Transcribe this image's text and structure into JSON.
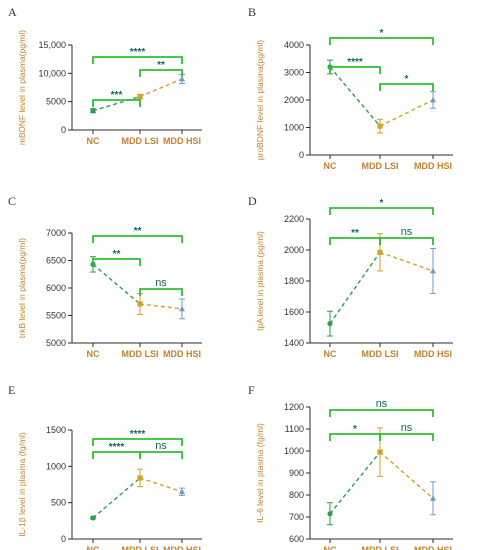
{
  "colors": {
    "nc": "#2e9e4a",
    "lsi": "#d4a12a",
    "hsi": "#6e9ec8",
    "bracket": "#2ec12e",
    "axis": "#2b2b2b",
    "label": "#c8812f",
    "sig_text": "#0f6b5b"
  },
  "chart_data": [
    {
      "panel_label": "A",
      "type": "line",
      "ylabel": "mBDNF level in plasma(pg/ml)",
      "categories": [
        "NC",
        "MDD LSI",
        "MDD HSI"
      ],
      "values": [
        3400,
        5900,
        9000
      ],
      "errors": [
        350,
        400,
        800
      ],
      "ylim": [
        0,
        15000
      ],
      "yticks": [
        0,
        5000,
        10000,
        15000
      ],
      "ytick_labels": [
        "0",
        "5000",
        "10,000",
        "15,000"
      ],
      "brackets": [
        {
          "from": 0,
          "to": 1,
          "text": "***"
        },
        {
          "from": 1,
          "to": 2,
          "text": "**"
        },
        {
          "from": 0,
          "to": 2,
          "text": "****"
        }
      ]
    },
    {
      "panel_label": "B",
      "type": "line",
      "ylabel": "proBDNF level in plasma(pg/ml)",
      "categories": [
        "NC",
        "MDD LSI",
        "MDD HSI"
      ],
      "values": [
        3200,
        1050,
        2000
      ],
      "errors": [
        250,
        250,
        300
      ],
      "ylim": [
        0,
        4000
      ],
      "yticks": [
        0,
        1000,
        2000,
        3000,
        4000
      ],
      "ytick_labels": [
        "0",
        "1000",
        "2000",
        "3000",
        "4000"
      ],
      "brackets": [
        {
          "from": 0,
          "to": 1,
          "text": "****"
        },
        {
          "from": 1,
          "to": 2,
          "text": "*"
        },
        {
          "from": 0,
          "to": 2,
          "text": "*"
        }
      ]
    },
    {
      "panel_label": "C",
      "type": "line",
      "ylabel": "trkB level in plasma(pg/ml)",
      "categories": [
        "NC",
        "MDD LSI",
        "MDD HSI"
      ],
      "values": [
        6430,
        5710,
        5620
      ],
      "errors": [
        140,
        190,
        180
      ],
      "ylim": [
        5000,
        7000
      ],
      "yticks": [
        5000,
        5500,
        6000,
        6500,
        7000
      ],
      "ytick_labels": [
        "5000",
        "5500",
        "6000",
        "6500",
        "7000"
      ],
      "brackets": [
        {
          "from": 0,
          "to": 1,
          "text": "**"
        },
        {
          "from": 1,
          "to": 2,
          "text": "ns"
        },
        {
          "from": 0,
          "to": 2,
          "text": "**"
        }
      ]
    },
    {
      "panel_label": "D",
      "type": "line",
      "ylabel": "tpA level in plasma (pg/ml)",
      "categories": [
        "NC",
        "MDD LSI",
        "MDD HSI"
      ],
      "values": [
        1525,
        1985,
        1865
      ],
      "errors": [
        80,
        120,
        145
      ],
      "ylim": [
        1400,
        2200
      ],
      "yticks": [
        1400,
        1600,
        1800,
        2000,
        2200
      ],
      "ytick_labels": [
        "1400",
        "1600",
        "1800",
        "2000",
        "2200"
      ],
      "brackets": [
        {
          "from": 0,
          "to": 1,
          "text": "**"
        },
        {
          "from": 1,
          "to": 2,
          "text": "ns"
        },
        {
          "from": 0,
          "to": 2,
          "text": "*"
        }
      ]
    },
    {
      "panel_label": "E",
      "type": "line",
      "ylabel": "IL-1β level in plasma (fg/ml)",
      "categories": [
        "NC",
        "MDD LSI",
        "MDD HSI"
      ],
      "values": [
        290,
        840,
        650
      ],
      "errors": [
        15,
        120,
        50
      ],
      "ylim": [
        0,
        1500
      ],
      "yticks": [
        0,
        500,
        1000,
        1500
      ],
      "ytick_labels": [
        "0",
        "500",
        "1000",
        "1500"
      ],
      "brackets": [
        {
          "from": 0,
          "to": 1,
          "text": "****"
        },
        {
          "from": 1,
          "to": 2,
          "text": "ns"
        },
        {
          "from": 0,
          "to": 2,
          "text": "****"
        }
      ]
    },
    {
      "panel_label": "F",
      "type": "line",
      "ylabel": "IL-6 level in plasma (fg/ml)",
      "categories": [
        "NC",
        "MDD LSI",
        "MDD HSI"
      ],
      "values": [
        715,
        995,
        785
      ],
      "errors": [
        50,
        110,
        75
      ],
      "ylim": [
        600,
        1200
      ],
      "yticks": [
        600,
        700,
        800,
        900,
        1000,
        1100,
        1200
      ],
      "ytick_labels": [
        "600",
        "700",
        "800",
        "900",
        "1000",
        "1100",
        "1200"
      ],
      "brackets": [
        {
          "from": 0,
          "to": 1,
          "text": "*"
        },
        {
          "from": 1,
          "to": 2,
          "text": "ns"
        },
        {
          "from": 0,
          "to": 2,
          "text": "ns"
        }
      ]
    }
  ]
}
